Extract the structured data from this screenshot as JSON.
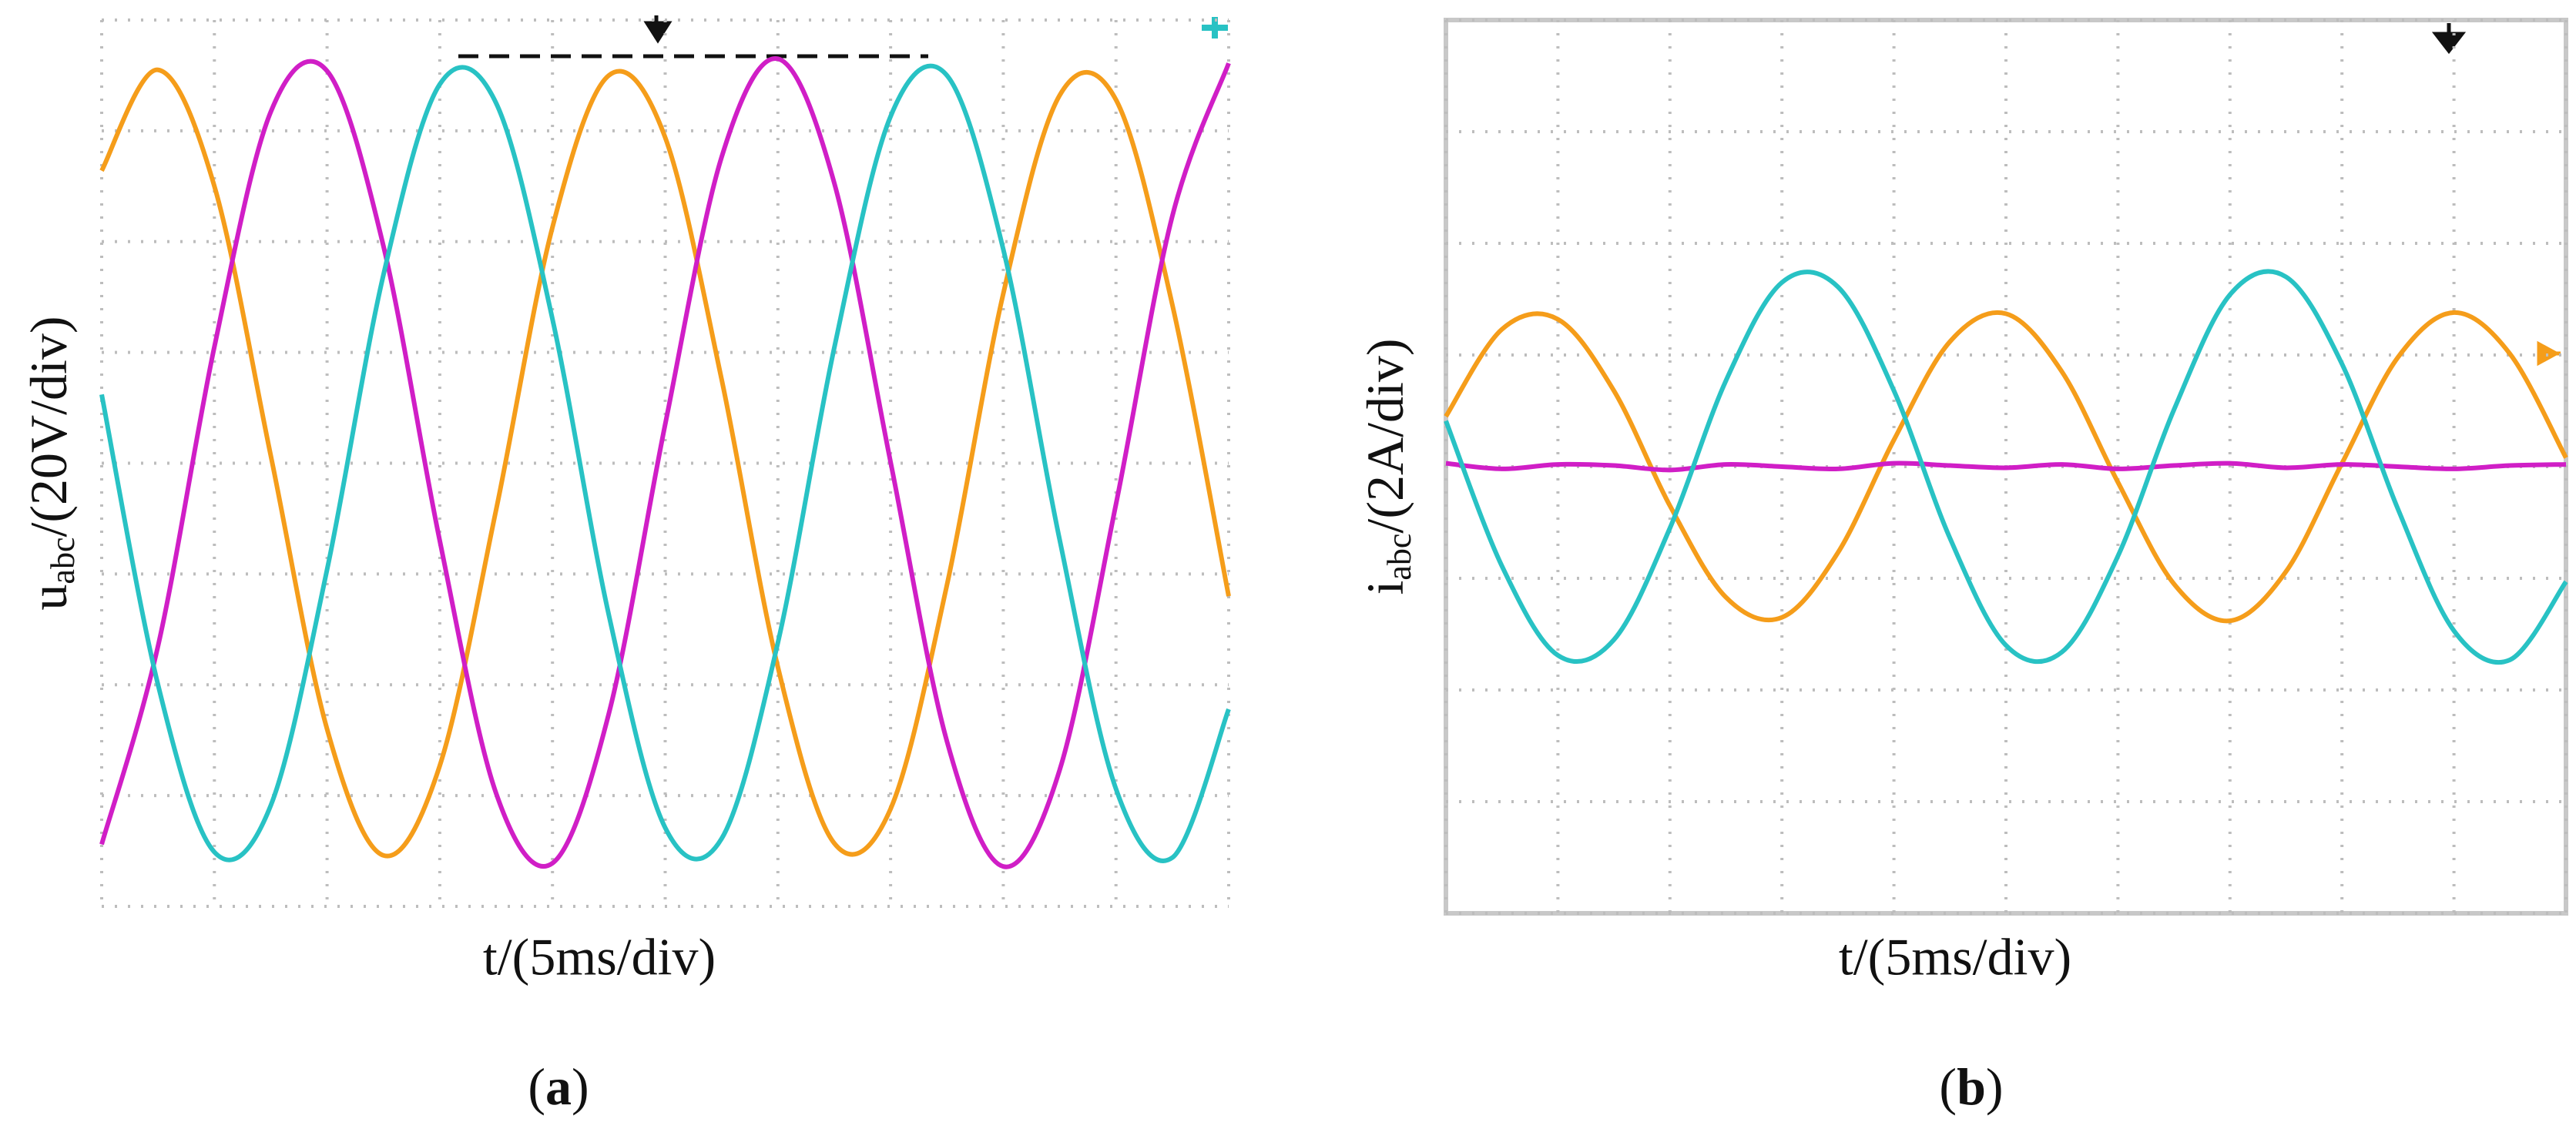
{
  "chart_data": [
    {
      "type": "line",
      "ylabel": [
        "u",
        "abc",
        "/(20V/div)"
      ],
      "xlabel": "t/(5ms/div)",
      "caption": [
        "(",
        "a",
        ")"
      ],
      "xlim": [
        0,
        10
      ],
      "ylim": [
        -4,
        4
      ],
      "xticks": [
        0,
        1,
        2,
        3,
        4,
        5,
        6,
        7,
        8,
        9,
        10
      ],
      "yticks": [
        -4,
        -3,
        -2,
        -1,
        0,
        1,
        2,
        3,
        4
      ],
      "grid": true,
      "x": [
        0,
        0.5,
        1,
        1.5,
        2,
        2.5,
        3,
        3.5,
        4,
        4.5,
        5,
        5.5,
        6,
        6.5,
        7,
        7.5,
        8,
        8.5,
        9,
        9.5,
        10
      ],
      "series": [
        {
          "color": "#f59d1a",
          "values": [
            2.64,
            3.55,
            2.5,
            0.07,
            -2.4,
            -3.54,
            -2.73,
            -0.42,
            2.13,
            3.5,
            2.94,
            0.76,
            -1.84,
            -3.43,
            -3.12,
            -1.1,
            1.53,
            3.32,
            3.28,
            1.43,
            -1.2
          ]
        },
        {
          "color": "#d01ec6",
          "values": [
            -3.44,
            -1.65,
            1.05,
            3.17,
            3.54,
            1.96,
            -0.7,
            -2.98,
            -3.61,
            -2.26,
            0.35,
            2.76,
            3.65,
            2.53,
            0.01,
            -2.51,
            -3.64,
            -2.77,
            -0.37,
            2.23,
            3.61
          ]
        },
        {
          "color": "#28c2c4",
          "values": [
            0.62,
            -2.0,
            -3.51,
            -3.09,
            -0.96,
            1.7,
            3.42,
            3.25,
            1.3,
            -1.37,
            -3.29,
            -3.39,
            -1.62,
            1.04,
            3.13,
            3.5,
            1.93,
            -0.69,
            -2.94,
            -3.56,
            -2.22
          ]
        }
      ]
    },
    {
      "type": "line",
      "ylabel": [
        "i",
        "abc",
        "/(2A/div)"
      ],
      "xlabel": "t/(5ms/div)",
      "caption": [
        "(",
        "b",
        ")"
      ],
      "xlim": [
        0,
        10
      ],
      "ylim": [
        -4,
        4
      ],
      "xticks": [
        0,
        1,
        2,
        3,
        4,
        5,
        6,
        7,
        8,
        9,
        10
      ],
      "yticks": [
        -4,
        -3,
        -2,
        -1,
        0,
        1,
        2,
        3,
        4
      ],
      "grid": true,
      "x": [
        0,
        0.5,
        1,
        1.5,
        2,
        2.5,
        3,
        3.5,
        4,
        4.5,
        5,
        5.5,
        6,
        6.5,
        7,
        7.5,
        8,
        8.5,
        9,
        9.5,
        10
      ],
      "series": [
        {
          "color": "#f59d1a",
          "values": [
            0.45,
            1.23,
            1.32,
            0.68,
            -0.35,
            -1.17,
            -1.35,
            -0.77,
            0.24,
            1.12,
            1.37,
            0.85,
            -0.14,
            -1.05,
            -1.38,
            -0.94,
            0.03,
            0.98,
            1.38,
            1.01,
            0.08
          ]
        },
        {
          "color": "#d01ec6",
          "values": [
            0.03,
            -0.02,
            0.02,
            0.01,
            -0.03,
            0.02,
            0.0,
            -0.02,
            0.03,
            0.01,
            -0.01,
            0.02,
            -0.02,
            0.01,
            0.03,
            -0.01,
            0.02,
            0.0,
            -0.02,
            0.01,
            0.02
          ]
        },
        {
          "color": "#28c2c4",
          "values": [
            0.41,
            -0.89,
            -1.69,
            -1.55,
            -0.55,
            0.77,
            1.65,
            1.61,
            0.68,
            -0.64,
            -1.6,
            -1.66,
            -0.8,
            0.51,
            1.54,
            1.7,
            0.92,
            -0.38,
            -1.47,
            -1.73,
            -1.03
          ]
        }
      ]
    }
  ]
}
